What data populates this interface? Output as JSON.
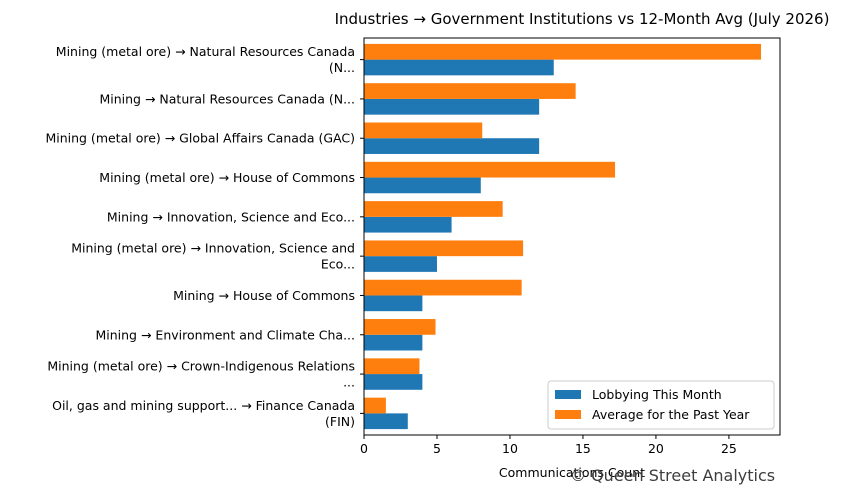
{
  "chart_data": {
    "type": "bar",
    "orientation": "horizontal",
    "title": "Industries → Government Institutions vs 12-Month Avg (July 2026)",
    "xlabel": "Communications Count",
    "ylabel": "",
    "xlim": [
      0,
      28.5
    ],
    "xticks": [
      0,
      5,
      10,
      15,
      20,
      25
    ],
    "grid": false,
    "legend_position": "lower-right",
    "categories": [
      [
        "Mining (metal ore) → Natural Resources Canada",
        "(N..."
      ],
      [
        "Mining → Natural Resources Canada (N..."
      ],
      [
        "Mining (metal ore) → Global Affairs Canada (GAC)"
      ],
      [
        "Mining (metal ore) → House of Commons"
      ],
      [
        "Mining → Innovation, Science and Eco..."
      ],
      [
        "Mining (metal ore) → Innovation, Science and",
        "Eco..."
      ],
      [
        "Mining → House of Commons"
      ],
      [
        "Mining → Environment and Climate Cha..."
      ],
      [
        "Mining (metal ore) → Crown-Indigenous Relations",
        "..."
      ],
      [
        "Oil, gas and mining support... → Finance Canada",
        "(FIN)"
      ]
    ],
    "series": [
      {
        "name": "Lobbying This Month",
        "color": "#1f77b4",
        "values": [
          13,
          12,
          12,
          8,
          6,
          5,
          4,
          4,
          4,
          3
        ]
      },
      {
        "name": "Average for the Past Year",
        "color": "#ff7f0e",
        "values": [
          27.2,
          14.5,
          8.1,
          17.2,
          9.5,
          10.9,
          10.8,
          4.9,
          3.8,
          1.5
        ]
      }
    ]
  },
  "watermark": "© Queen Street Analytics"
}
